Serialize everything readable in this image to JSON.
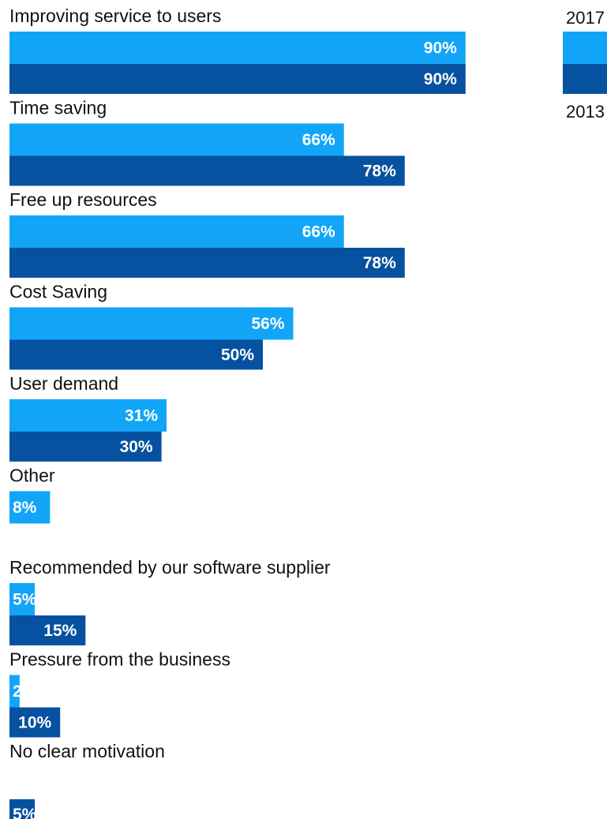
{
  "chart_data": {
    "type": "bar",
    "orientation": "horizontal",
    "categories": [
      "Improving service to users",
      "Time saving",
      "Free up resources",
      "Cost Saving",
      "User demand",
      "Other",
      "Recommended by our software supplier",
      "Pressure from the business",
      "No clear motivation"
    ],
    "series": [
      {
        "name": "2017",
        "color": "#12a5f7",
        "values": [
          90,
          66,
          66,
          56,
          31,
          8,
          5,
          2,
          null
        ],
        "labels": [
          "90%",
          "66%",
          "66%",
          "56%",
          "31%",
          "8%",
          "5%",
          "2",
          ""
        ]
      },
      {
        "name": "2013",
        "color": "#0651a0",
        "values": [
          90,
          78,
          78,
          50,
          30,
          null,
          15,
          10,
          5
        ],
        "labels": [
          "90%",
          "78%",
          "78%",
          "50%",
          "30%",
          "",
          "15%",
          "10%",
          "5%"
        ]
      }
    ],
    "xlim": [
      0,
      100
    ],
    "legend": "top-right",
    "grid": false,
    "title": "",
    "xlabel": "",
    "ylabel": ""
  }
}
